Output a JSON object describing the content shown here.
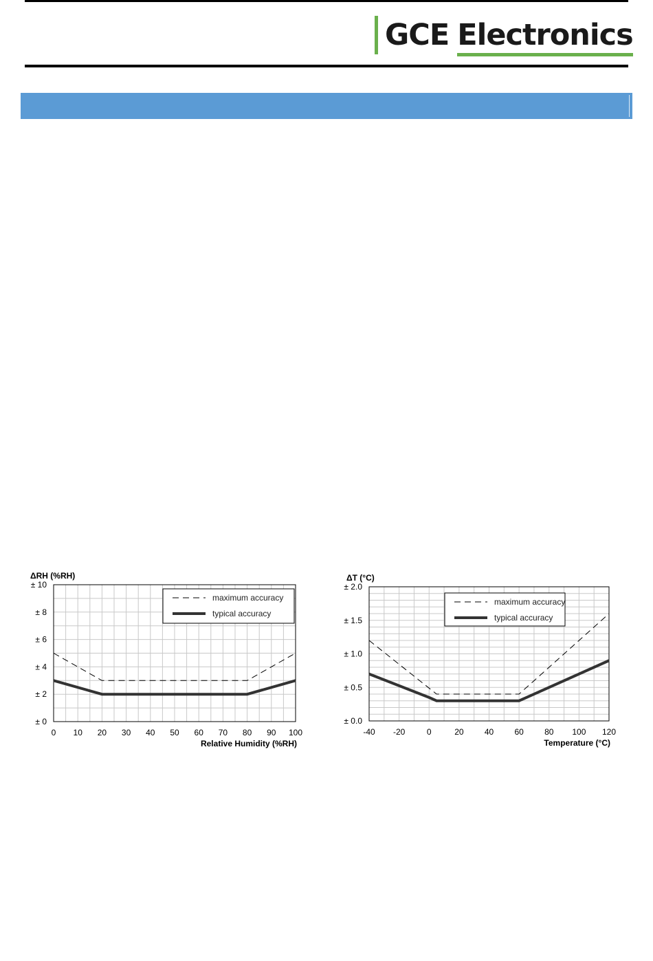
{
  "header": {
    "brand_part1": "GCE",
    "brand_part2": "Electronics",
    "colors": {
      "accent_green": "#6ab04c",
      "section_blue": "#5b9bd5"
    }
  },
  "chart_data": [
    {
      "type": "line",
      "ylabel": "ΔRH (%RH)",
      "xlabel": "Relative Humidity (%RH)",
      "xlim": [
        0,
        100
      ],
      "ylim": [
        0,
        10
      ],
      "x_ticks": [
        0,
        10,
        20,
        30,
        40,
        50,
        60,
        70,
        80,
        90,
        100
      ],
      "x_tick_labels": [
        "0",
        "10",
        "20",
        "30",
        "40",
        "50",
        "60",
        "70",
        "80",
        "90",
        "100"
      ],
      "y_ticks": [
        0,
        2,
        4,
        6,
        8,
        10
      ],
      "y_tick_labels": [
        "± 0",
        "± 2",
        "± 4",
        "± 6",
        "± 8",
        "± 10"
      ],
      "x_grid_step": 5,
      "y_grid_step": 1,
      "grid": true,
      "legend": "top-right",
      "series": [
        {
          "name": "maximum accuracy",
          "style": "dashed",
          "x": [
            0,
            20,
            80,
            100
          ],
          "y": [
            5,
            3,
            3,
            5
          ]
        },
        {
          "name": "typical accuracy",
          "style": "solid-thick",
          "x": [
            0,
            20,
            80,
            100
          ],
          "y": [
            3,
            2,
            2,
            3
          ]
        }
      ]
    },
    {
      "type": "line",
      "ylabel": "ΔT (°C)",
      "xlabel": "Temperature (°C)",
      "xlim": [
        -40,
        120
      ],
      "ylim": [
        0,
        2
      ],
      "x_ticks": [
        -40,
        -20,
        0,
        20,
        40,
        60,
        80,
        100,
        120
      ],
      "x_tick_labels": [
        "-40",
        "-20",
        "0",
        "20",
        "40",
        "60",
        "80",
        "100",
        "120"
      ],
      "y_ticks": [
        0,
        0.5,
        1,
        1.5,
        2
      ],
      "y_tick_labels": [
        "± 0.0",
        "± 0.5",
        "± 1.0",
        "± 1.5",
        "± 2.0"
      ],
      "x_grid_step": 10,
      "y_grid_step": 0.1,
      "grid": true,
      "legend": "top-right",
      "series": [
        {
          "name": "maximum accuracy",
          "style": "dashed",
          "x": [
            -40,
            5,
            60,
            120
          ],
          "y": [
            1.2,
            0.4,
            0.4,
            1.6
          ]
        },
        {
          "name": "typical accuracy",
          "style": "solid-thick",
          "x": [
            -40,
            0,
            5,
            60,
            120
          ],
          "y": [
            0.7,
            0.35,
            0.3,
            0.3,
            0.9
          ]
        }
      ]
    }
  ]
}
